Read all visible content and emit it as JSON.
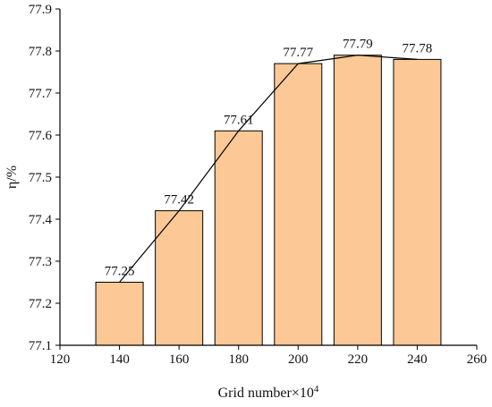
{
  "chart_data": {
    "type": "bar",
    "xlabel": "Grid number×10",
    "xlabel_superscript": "4",
    "ylabel": "η/%",
    "x": [
      140,
      160,
      180,
      200,
      220,
      240
    ],
    "values": [
      77.25,
      77.42,
      77.61,
      77.77,
      77.79,
      77.78
    ],
    "data_labels": [
      "77.25",
      "77.42",
      "77.61",
      "77.77",
      "77.79",
      "77.78"
    ],
    "xlim": [
      120,
      260
    ],
    "ylim": [
      77.1,
      77.9
    ],
    "xticks": [
      120,
      140,
      160,
      180,
      200,
      220,
      240,
      260
    ],
    "yticks": [
      77.1,
      77.2,
      77.3,
      77.4,
      77.5,
      77.6,
      77.7,
      77.8,
      77.9
    ],
    "xtick_labels": [
      "120",
      "140",
      "160",
      "180",
      "200",
      "220",
      "240",
      "260"
    ],
    "ytick_labels": [
      "77.1",
      "77.2",
      "77.3",
      "77.4",
      "77.5",
      "77.6",
      "77.7",
      "77.8",
      "77.9"
    ],
    "trend_line": true,
    "grid": false,
    "colors": {
      "bar_fill": "#FBC896",
      "bar_edge": "#000000",
      "line": "#000000"
    }
  }
}
